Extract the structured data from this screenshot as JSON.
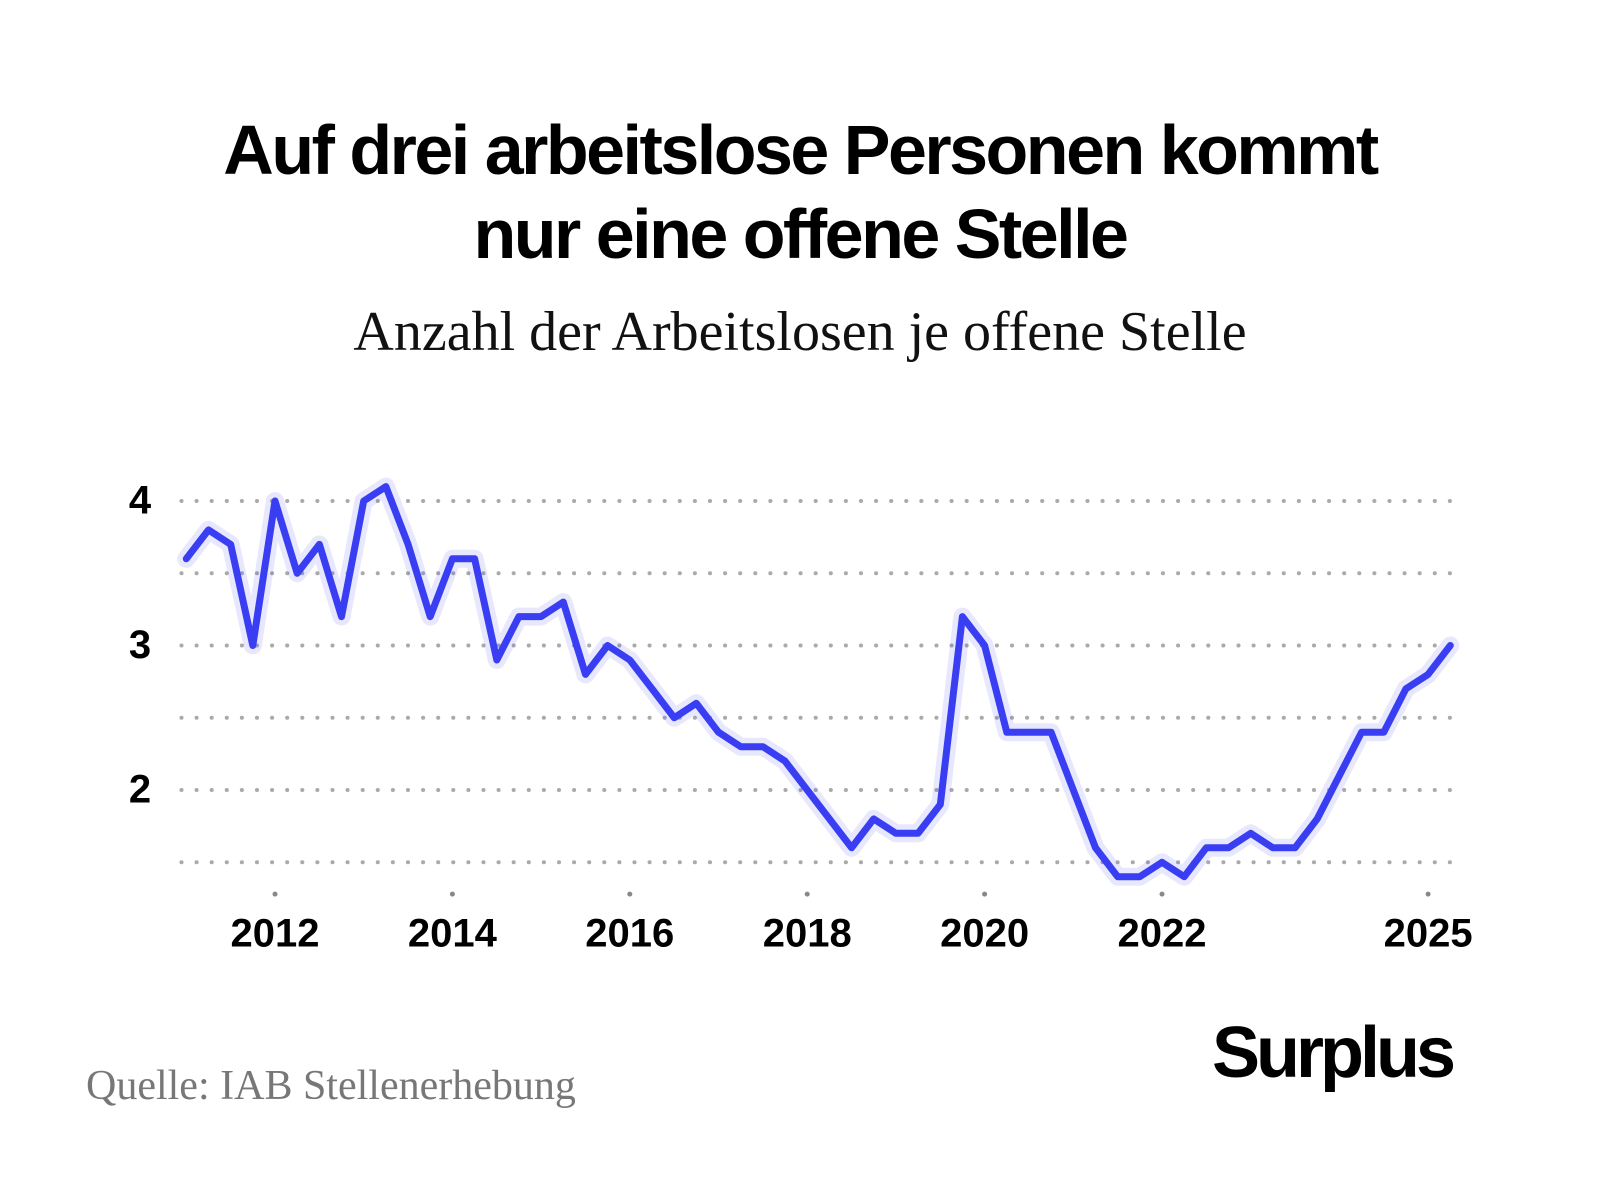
{
  "chart_data": {
    "type": "line",
    "title": "Auf drei arbeitslose Personen kommt nur eine offene Stelle",
    "subtitle": "Anzahl der Arbeitslosen je offene Stelle",
    "source": "Quelle: IAB Stellenerhebung",
    "brand": "Surplus",
    "color": "#3a3ef2",
    "x": [
      2011,
      2011.25,
      2011.5,
      2011.75,
      2012,
      2012.25,
      2012.5,
      2012.75,
      2013,
      2013.25,
      2013.5,
      2013.75,
      2014,
      2014.25,
      2014.5,
      2014.75,
      2015,
      2015.25,
      2015.5,
      2015.75,
      2016,
      2016.25,
      2016.5,
      2016.75,
      2017,
      2017.25,
      2017.5,
      2017.75,
      2018,
      2018.25,
      2018.5,
      2018.75,
      2019,
      2019.25,
      2019.5,
      2019.75,
      2020,
      2020.25,
      2020.5,
      2020.75,
      2021,
      2021.25,
      2021.5,
      2021.75,
      2022,
      2022.25,
      2022.5,
      2022.75,
      2023,
      2023.25,
      2023.5,
      2023.75,
      2024,
      2024.25,
      2024.5,
      2024.75,
      2025,
      2025.25
    ],
    "values": [
      3.6,
      3.8,
      3.7,
      3.0,
      4.0,
      3.5,
      3.7,
      3.2,
      4.0,
      4.1,
      3.7,
      3.2,
      3.6,
      3.6,
      2.9,
      3.2,
      3.2,
      3.3,
      2.8,
      3.0,
      2.9,
      2.7,
      2.5,
      2.6,
      2.4,
      2.3,
      2.3,
      2.2,
      2.0,
      1.8,
      1.6,
      1.8,
      1.7,
      1.7,
      1.9,
      3.2,
      3.0,
      2.4,
      2.4,
      2.4,
      2.0,
      1.6,
      1.4,
      1.4,
      1.5,
      1.4,
      1.6,
      1.6,
      1.7,
      1.6,
      1.6,
      1.8,
      2.1,
      2.4,
      2.4,
      2.7,
      2.8,
      3.0
    ],
    "xlim": [
      2010.9,
      2025.4
    ],
    "xticks": [
      2012,
      2014,
      2016,
      2018,
      2020,
      2022,
      2025
    ],
    "ylim": [
      1.3,
      4.15
    ],
    "yticks": [
      2,
      3,
      4
    ],
    "ygrid_minor": [
      1.5,
      2.5,
      3.5
    ],
    "grid": true
  }
}
